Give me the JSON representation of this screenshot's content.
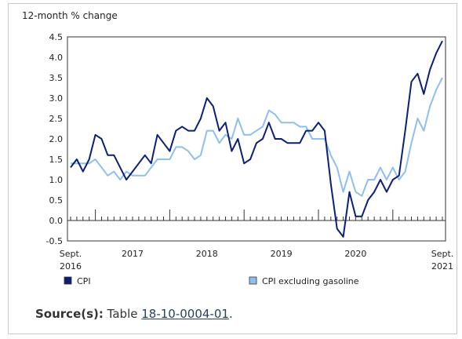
{
  "chart_data": {
    "type": "line",
    "ylabel": "12-month % change",
    "xlabel": "",
    "ylim": [
      -0.5,
      4.5
    ],
    "yticks": [
      "4.5",
      "4.0",
      "3.5",
      "3.0",
      "2.5",
      "2.0",
      "1.5",
      "1.0",
      "0.5",
      "0.0",
      "-0.5"
    ],
    "x_start": "2016-09",
    "x_end": "2021-09",
    "x_labels": [
      {
        "date": "2016-09",
        "line1": "Sept.",
        "line2": "2016"
      },
      {
        "date": "2017-07",
        "line1": "2017",
        "line2": ""
      },
      {
        "date": "2018-07",
        "line1": "2018",
        "line2": ""
      },
      {
        "date": "2019-07",
        "line1": "2019",
        "line2": ""
      },
      {
        "date": "2020-07",
        "line1": "2020",
        "line2": ""
      },
      {
        "date": "2021-09",
        "line1": "Sept.",
        "line2": "2021"
      }
    ],
    "grid": false,
    "legend_position": "bottom",
    "series": [
      {
        "name": "CPI",
        "color": "#0b1f78",
        "values": [
          1.3,
          1.5,
          1.2,
          1.5,
          2.1,
          2.0,
          1.6,
          1.6,
          1.3,
          1.0,
          1.2,
          1.4,
          1.6,
          1.4,
          2.1,
          1.9,
          1.7,
          2.2,
          2.3,
          2.2,
          2.2,
          2.5,
          3.0,
          2.8,
          2.2,
          2.4,
          1.7,
          2.0,
          1.4,
          1.5,
          1.9,
          2.0,
          2.4,
          2.0,
          2.0,
          1.9,
          1.9,
          1.9,
          2.2,
          2.2,
          2.4,
          2.2,
          0.9,
          -0.2,
          -0.4,
          0.7,
          0.1,
          0.1,
          0.5,
          0.7,
          1.0,
          0.7,
          1.0,
          1.1,
          2.2,
          3.4,
          3.6,
          3.1,
          3.7,
          4.1,
          4.4
        ]
      },
      {
        "name": "CPI excluding gasoline",
        "color": "#8ebfee",
        "values": [
          1.4,
          1.4,
          1.4,
          1.4,
          1.5,
          1.3,
          1.1,
          1.2,
          1.0,
          1.2,
          1.1,
          1.1,
          1.1,
          1.3,
          1.5,
          1.5,
          1.5,
          1.8,
          1.8,
          1.7,
          1.5,
          1.6,
          2.2,
          2.2,
          1.9,
          2.1,
          2.0,
          2.5,
          2.1,
          2.1,
          2.2,
          2.3,
          2.7,
          2.6,
          2.4,
          2.4,
          2.4,
          2.3,
          2.3,
          2.0,
          2.0,
          2.0,
          1.6,
          1.3,
          0.7,
          1.2,
          0.7,
          0.6,
          1.0,
          1.0,
          1.3,
          1.0,
          1.3,
          1.0,
          1.2,
          1.9,
          2.5,
          2.2,
          2.8,
          3.2,
          3.5
        ]
      }
    ]
  },
  "source": {
    "label": "Source(s):",
    "prefix": "Table",
    "link_text": "18-10-0004-01",
    "suffix": "."
  }
}
